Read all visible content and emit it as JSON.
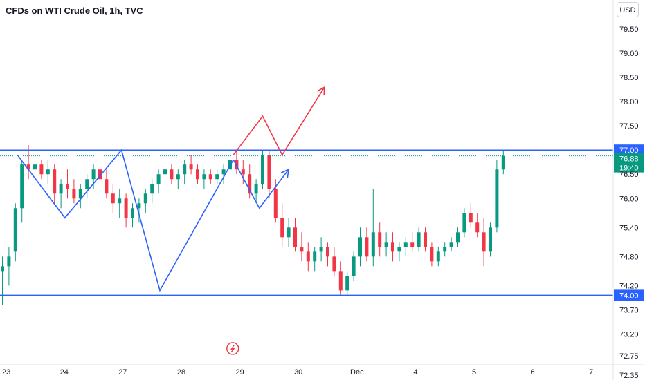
{
  "header": {
    "title": "CFDs on WTI Crude Oil, 1h, TVC",
    "currency_label": "USD"
  },
  "colors": {
    "up": "#089981",
    "down": "#f23645",
    "level_line": "#2962ff",
    "drawing_blue": "#2962ff",
    "drawing_red": "#f23645"
  },
  "chart_data": {
    "type": "candlestick",
    "ylim": [
      72.25,
      80.1
    ],
    "y_ticks": [
      "79.50",
      "79.00",
      "78.50",
      "78.00",
      "77.50",
      "76.50",
      "76.00",
      "75.40",
      "74.80",
      "74.20",
      "73.70",
      "73.20",
      "72.75",
      "72.35"
    ],
    "x_ticks": [
      {
        "label": "23",
        "pos": 0.6
      },
      {
        "label": "24",
        "pos": 9.5
      },
      {
        "label": "27",
        "pos": 18.5
      },
      {
        "label": "28",
        "pos": 27.5
      },
      {
        "label": "29",
        "pos": 36.5
      },
      {
        "label": "30",
        "pos": 45.5
      },
      {
        "label": "Dec",
        "pos": 54.5
      },
      {
        "label": "4",
        "pos": 63.5
      },
      {
        "label": "5",
        "pos": 72.5
      },
      {
        "label": "6",
        "pos": 81.5
      },
      {
        "label": "7",
        "pos": 90.5
      }
    ],
    "levels": [
      {
        "price": 77.0,
        "label": "77.00"
      },
      {
        "price": 74.0,
        "label": "74.00"
      }
    ],
    "current_price": {
      "price": 76.88,
      "label": "76.88",
      "countdown": "19:40"
    },
    "candles": [
      [
        74.5,
        74.8,
        73.8,
        74.6
      ],
      [
        74.6,
        75.0,
        74.2,
        74.8
      ],
      [
        74.9,
        75.9,
        74.7,
        75.8
      ],
      [
        75.8,
        76.8,
        75.5,
        76.7
      ],
      [
        76.7,
        77.1,
        76.4,
        76.6
      ],
      [
        76.6,
        76.9,
        76.2,
        76.7
      ],
      [
        76.7,
        76.8,
        76.4,
        76.5
      ],
      [
        76.5,
        76.8,
        76.3,
        76.6
      ],
      [
        76.6,
        76.7,
        75.9,
        76.1
      ],
      [
        76.1,
        76.4,
        75.8,
        76.3
      ],
      [
        76.3,
        76.6,
        76.0,
        76.2
      ],
      [
        76.2,
        76.4,
        75.9,
        76.0
      ],
      [
        76.0,
        76.3,
        75.8,
        76.2
      ],
      [
        76.2,
        76.5,
        76.0,
        76.4
      ],
      [
        76.4,
        76.7,
        76.2,
        76.6
      ],
      [
        76.6,
        76.8,
        76.3,
        76.4
      ],
      [
        76.4,
        76.6,
        76.0,
        76.1
      ],
      [
        76.1,
        76.3,
        75.7,
        75.9
      ],
      [
        75.9,
        76.2,
        75.6,
        76.0
      ],
      [
        76.0,
        76.1,
        75.4,
        75.6
      ],
      [
        75.6,
        75.9,
        75.4,
        75.8
      ],
      [
        75.8,
        76.0,
        75.5,
        75.9
      ],
      [
        75.9,
        76.2,
        75.7,
        76.1
      ],
      [
        76.1,
        76.4,
        75.9,
        76.3
      ],
      [
        76.3,
        76.6,
        76.1,
        76.5
      ],
      [
        76.5,
        76.8,
        76.3,
        76.6
      ],
      [
        76.6,
        76.7,
        76.3,
        76.4
      ],
      [
        76.4,
        76.6,
        76.2,
        76.5
      ],
      [
        76.5,
        76.8,
        76.3,
        76.7
      ],
      [
        76.7,
        76.9,
        76.5,
        76.6
      ],
      [
        76.6,
        76.7,
        76.3,
        76.4
      ],
      [
        76.4,
        76.6,
        76.2,
        76.5
      ],
      [
        76.5,
        76.6,
        76.3,
        76.4
      ],
      [
        76.4,
        76.6,
        76.3,
        76.5
      ],
      [
        76.5,
        76.7,
        76.3,
        76.6
      ],
      [
        76.6,
        76.9,
        76.4,
        76.8
      ],
      [
        76.8,
        77.0,
        76.5,
        76.6
      ],
      [
        76.6,
        76.8,
        76.3,
        76.5
      ],
      [
        76.5,
        76.7,
        76.0,
        76.1
      ],
      [
        76.1,
        76.4,
        75.9,
        76.3
      ],
      [
        76.3,
        77.0,
        76.2,
        76.9
      ],
      [
        76.9,
        77.0,
        76.0,
        76.2
      ],
      [
        76.2,
        76.4,
        75.5,
        75.6
      ],
      [
        75.6,
        75.9,
        75.0,
        75.2
      ],
      [
        75.2,
        75.6,
        75.0,
        75.4
      ],
      [
        75.4,
        75.6,
        74.9,
        75.0
      ],
      [
        75.0,
        75.3,
        74.7,
        74.9
      ],
      [
        74.9,
        75.1,
        74.5,
        74.7
      ],
      [
        74.7,
        75.0,
        74.5,
        74.9
      ],
      [
        74.9,
        75.2,
        74.7,
        75.0
      ],
      [
        75.0,
        75.1,
        74.6,
        74.8
      ],
      [
        74.8,
        75.0,
        74.4,
        74.5
      ],
      [
        74.5,
        74.7,
        74.0,
        74.1
      ],
      [
        74.1,
        74.5,
        74.0,
        74.4
      ],
      [
        74.4,
        74.9,
        74.3,
        74.8
      ],
      [
        74.8,
        75.4,
        74.6,
        75.2
      ],
      [
        75.2,
        75.4,
        74.7,
        74.8
      ],
      [
        74.8,
        76.2,
        74.6,
        75.3
      ],
      [
        75.3,
        75.5,
        74.8,
        75.0
      ],
      [
        75.0,
        75.3,
        74.8,
        75.1
      ],
      [
        75.1,
        75.3,
        74.7,
        74.9
      ],
      [
        74.9,
        75.1,
        74.7,
        75.0
      ],
      [
        75.0,
        75.2,
        74.8,
        75.1
      ],
      [
        75.1,
        75.3,
        74.9,
        75.0
      ],
      [
        75.0,
        75.4,
        74.9,
        75.3
      ],
      [
        75.3,
        75.4,
        74.9,
        75.0
      ],
      [
        75.0,
        75.1,
        74.6,
        74.7
      ],
      [
        74.7,
        75.0,
        74.6,
        74.9
      ],
      [
        74.9,
        75.1,
        74.8,
        75.0
      ],
      [
        75.0,
        75.2,
        74.9,
        75.1
      ],
      [
        75.1,
        75.4,
        75.0,
        75.3
      ],
      [
        75.3,
        75.8,
        75.2,
        75.7
      ],
      [
        75.7,
        75.9,
        75.4,
        75.5
      ],
      [
        75.5,
        75.7,
        75.2,
        75.3
      ],
      [
        75.3,
        75.6,
        74.6,
        74.9
      ],
      [
        74.9,
        75.5,
        74.8,
        75.4
      ],
      [
        75.4,
        76.8,
        75.3,
        76.6
      ],
      [
        76.6,
        77.0,
        76.5,
        76.88
      ]
    ],
    "drawings": [
      {
        "type": "polyline",
        "color": "blue",
        "points": [
          [
            2.3,
            76.9
          ],
          [
            9.6,
            75.6
          ],
          [
            18.3,
            77.0
          ],
          [
            24.2,
            74.1
          ],
          [
            35.5,
            76.8
          ]
        ]
      },
      {
        "type": "arrow",
        "color": "blue",
        "points": [
          [
            35.5,
            76.8
          ],
          [
            39.5,
            75.8
          ],
          [
            44.0,
            76.6
          ]
        ]
      },
      {
        "type": "arrow",
        "color": "red",
        "points": [
          [
            35.5,
            76.9
          ],
          [
            40.0,
            77.7
          ],
          [
            43.0,
            76.9
          ],
          [
            49.5,
            78.3
          ]
        ]
      }
    ],
    "event_marker": {
      "x": 35.4,
      "price": 72.9,
      "icon": "lightning-icon"
    }
  }
}
